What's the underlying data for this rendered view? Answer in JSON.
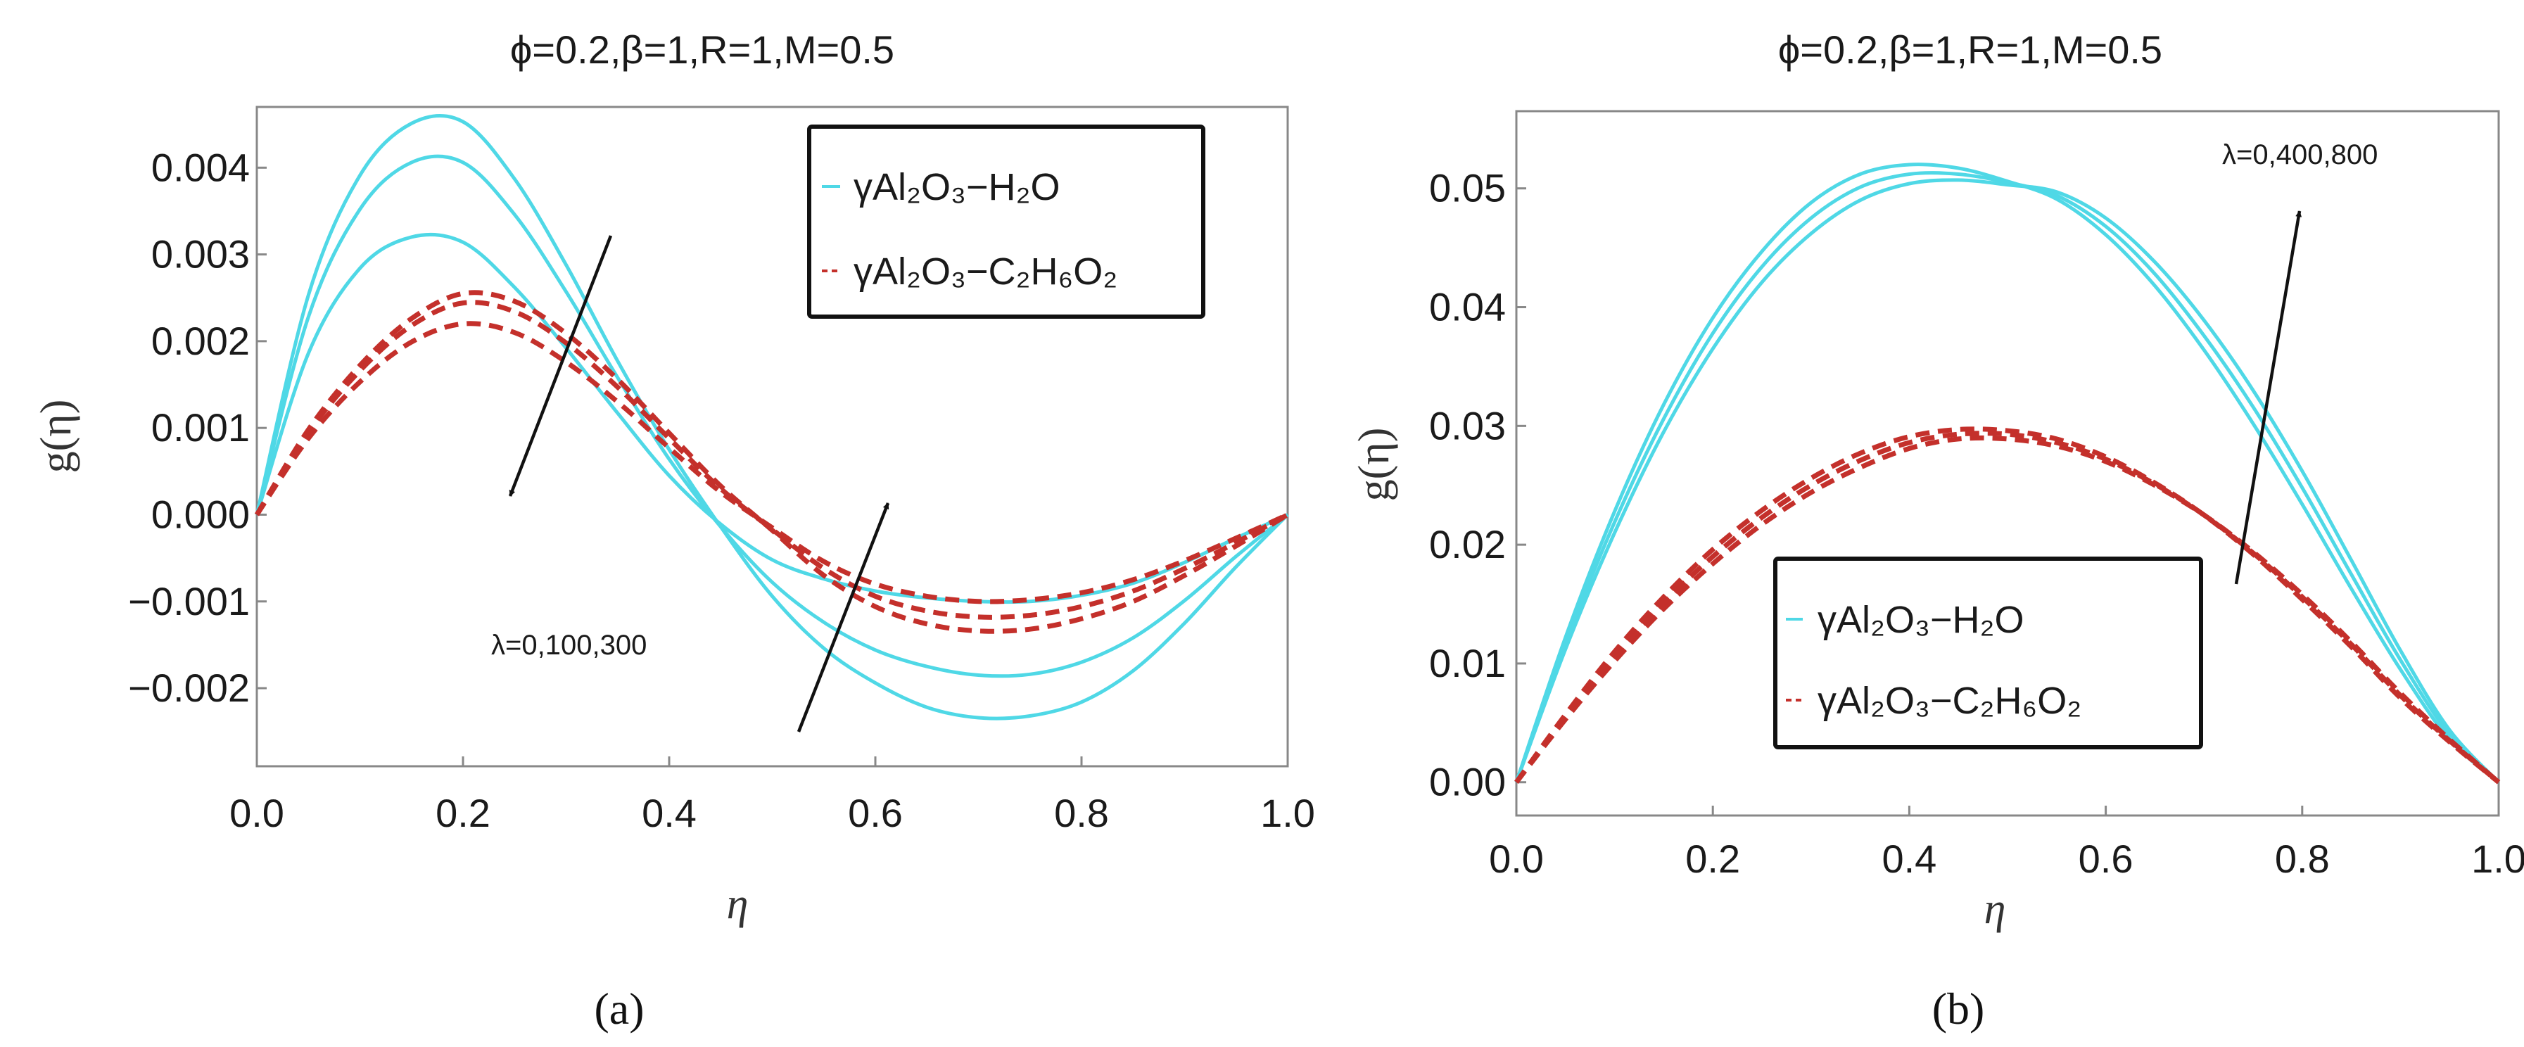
{
  "chart_data": [
    {
      "panel_label": "(a)",
      "type": "line",
      "title": "ϕ=0.2,β=1,R=1,M=0.5",
      "xlabel": "η",
      "ylabel": "g(η)",
      "xlim": [
        0,
        1
      ],
      "ylim": [
        -0.0029,
        0.0047
      ],
      "xticks": [
        0.0,
        0.2,
        0.4,
        0.6,
        0.8,
        1.0
      ],
      "xtick_labels": [
        "0.0",
        "0.2",
        "0.4",
        "0.6",
        "0.8",
        "1.0"
      ],
      "yticks": [
        -0.002,
        -0.001,
        0.0,
        0.001,
        0.002,
        0.003,
        0.004
      ],
      "ytick_labels": [
        "−0.002",
        "−0.001",
        "0.000",
        "0.001",
        "0.002",
        "0.003",
        "0.004"
      ],
      "annotation": "λ=0,100,300",
      "legend": {
        "position": "top-right",
        "entries": [
          {
            "label": "γAl₂O₃−H₂O",
            "style": "solid",
            "color": "#4fd8e6"
          },
          {
            "label": "γAl₂O₃−C₂H₆O₂",
            "style": "dashed",
            "color": "#c4302b"
          }
        ]
      },
      "x": [
        0,
        0.05,
        0.1,
        0.15,
        0.2,
        0.25,
        0.3,
        0.35,
        0.4,
        0.45,
        0.5,
        0.55,
        0.6,
        0.65,
        0.7,
        0.75,
        0.8,
        0.85,
        0.9,
        0.95,
        1
      ],
      "series": [
        {
          "name": "γAl₂O₃−H₂O λ=0",
          "style": "solid",
          "color": "#4fd8e6",
          "values": [
            0,
            0.00253,
            0.00391,
            0.00451,
            0.00453,
            0.00387,
            0.00288,
            0.00177,
            0.00075,
            -0.00014,
            -0.00094,
            -0.00154,
            -0.00194,
            -0.00222,
            -0.00234,
            -0.00232,
            -0.00216,
            -0.0018,
            -0.00125,
            -0.0006,
            0
          ]
        },
        {
          "name": "γAl₂O₃−H₂O λ=100",
          "style": "solid",
          "color": "#4fd8e6",
          "values": [
            0,
            0.00228,
            0.00352,
            0.00406,
            0.00406,
            0.00346,
            0.00257,
            0.00158,
            0.00064,
            -0.00014,
            -0.00078,
            -0.00124,
            -0.00156,
            -0.00175,
            -0.00185,
            -0.00184,
            -0.0017,
            -0.00142,
            -0.00099,
            -0.00048,
            0
          ]
        },
        {
          "name": "γAl₂O₃−H₂O λ=300",
          "style": "solid",
          "color": "#4fd8e6",
          "values": [
            0,
            0.00186,
            0.00284,
            0.0032,
            0.00314,
            0.00262,
            0.00192,
            0.00117,
            0.00045,
            -0.00011,
            -0.00052,
            -0.00074,
            -0.00088,
            -0.00096,
            -0.001,
            -0.001,
            -0.00093,
            -0.00079,
            -0.00055,
            -0.00027,
            0
          ]
        },
        {
          "name": "γAl₂O₃−C₂H₆O₂ λ=0",
          "style": "dashed",
          "color": "#c4302b",
          "values": [
            0,
            0.00098,
            0.00172,
            0.00226,
            0.00255,
            0.00246,
            0.00209,
            0.00156,
            0.00094,
            0.00033,
            -0.00018,
            -0.0007,
            -0.00106,
            -0.00126,
            -0.00134,
            -0.00132,
            -0.0012,
            -0.001,
            -0.0007,
            -0.00036,
            0
          ]
        },
        {
          "name": "γAl₂O₃−C₂H₆O₂ λ=100",
          "style": "dashed",
          "color": "#c4302b",
          "values": [
            0,
            0.00095,
            0.00166,
            0.00218,
            0.00244,
            0.00234,
            0.00198,
            0.00147,
            0.00088,
            0.0003,
            -0.00017,
            -0.00062,
            -0.00094,
            -0.00111,
            -0.00118,
            -0.00116,
            -0.00106,
            -0.00088,
            -0.00062,
            -0.00032,
            0
          ]
        },
        {
          "name": "γAl₂O₃−C₂H₆O₂ λ=300",
          "style": "dashed",
          "color": "#c4302b",
          "values": [
            0,
            0.00088,
            0.00153,
            0.00199,
            0.0022,
            0.0021,
            0.00176,
            0.0013,
            0.00077,
            0.00026,
            -0.00015,
            -0.00054,
            -0.0008,
            -0.00094,
            -0.001,
            -0.00098,
            -0.0009,
            -0.00075,
            -0.00053,
            -0.00027,
            0
          ]
        }
      ]
    },
    {
      "panel_label": "(b)",
      "type": "line",
      "title": "ϕ=0.2,β=1,R=1,M=0.5",
      "xlabel": "η",
      "ylabel": "g(η)",
      "xlim": [
        0,
        1
      ],
      "ylim": [
        -0.0028,
        0.0565
      ],
      "xticks": [
        0.0,
        0.2,
        0.4,
        0.6,
        0.8,
        1.0
      ],
      "xtick_labels": [
        "0.0",
        "0.2",
        "0.4",
        "0.6",
        "0.8",
        "1.0"
      ],
      "yticks": [
        0.0,
        0.01,
        0.02,
        0.03,
        0.04,
        0.05
      ],
      "ytick_labels": [
        "0.00",
        "0.01",
        "0.02",
        "0.03",
        "0.04",
        "0.05"
      ],
      "annotation": "λ=0,400,800",
      "legend": {
        "position": "bottom-center",
        "entries": [
          {
            "label": "γAl₂O₃−H₂O",
            "style": "solid",
            "color": "#4fd8e6"
          },
          {
            "label": "γAl₂O₃−C₂H₆O₂",
            "style": "dashed",
            "color": "#c4302b"
          }
        ]
      },
      "x": [
        0,
        0.05,
        0.1,
        0.15,
        0.2,
        0.25,
        0.3,
        0.35,
        0.4,
        0.45,
        0.5,
        0.55,
        0.6,
        0.65,
        0.7,
        0.75,
        0.8,
        0.85,
        0.9,
        0.95,
        1
      ],
      "series": [
        {
          "name": "γAl₂O₃−H₂O λ=0",
          "style": "solid",
          "color": "#4fd8e6",
          "values": [
            0,
            0.0112,
            0.021,
            0.0295,
            0.0365,
            0.0421,
            0.0462,
            0.049,
            0.0504,
            0.0507,
            0.0503,
            0.0497,
            0.0475,
            0.0438,
            0.0389,
            0.033,
            0.0262,
            0.0187,
            0.0111,
            0.0044,
            0
          ]
        },
        {
          "name": "γAl₂O₃−H₂O λ=400",
          "style": "solid",
          "color": "#4fd8e6",
          "values": [
            0,
            0.0117,
            0.0219,
            0.0306,
            0.0378,
            0.0434,
            0.0475,
            0.0501,
            0.0512,
            0.0512,
            0.0505,
            0.0494,
            0.0468,
            0.0428,
            0.0376,
            0.0316,
            0.0248,
            0.0175,
            0.0103,
            0.004,
            0
          ]
        },
        {
          "name": "γAl₂O₃−H₂O λ=800",
          "style": "solid",
          "color": "#4fd8e6",
          "values": [
            0,
            0.0122,
            0.0228,
            0.0318,
            0.0391,
            0.0447,
            0.0488,
            0.0512,
            0.052,
            0.0517,
            0.0506,
            0.0491,
            0.0461,
            0.0418,
            0.0364,
            0.0302,
            0.0234,
            0.0163,
            0.0095,
            0.0036,
            0
          ]
        },
        {
          "name": "γAl₂O₃−C₂H₆O₂ λ=0",
          "style": "dashed",
          "color": "#c4302b",
          "values": [
            0,
            0.0053,
            0.0102,
            0.0146,
            0.0184,
            0.0217,
            0.0244,
            0.0265,
            0.0281,
            0.0289,
            0.0289,
            0.0283,
            0.027,
            0.025,
            0.0225,
            0.0194,
            0.0158,
            0.0118,
            0.0075,
            0.0036,
            0
          ]
        },
        {
          "name": "γAl₂O₃−C₂H₆O₂ λ=400",
          "style": "dashed",
          "color": "#c4302b",
          "values": [
            0,
            0.0055,
            0.0106,
            0.0151,
            0.019,
            0.0223,
            0.025,
            0.0271,
            0.0286,
            0.0293,
            0.0293,
            0.0286,
            0.0272,
            0.0251,
            0.0225,
            0.0193,
            0.0156,
            0.0116,
            0.0073,
            0.0035,
            0
          ]
        },
        {
          "name": "γAl₂O₃−C₂H₆O₂ λ=800",
          "style": "dashed",
          "color": "#c4302b",
          "values": [
            0,
            0.0057,
            0.011,
            0.0156,
            0.0196,
            0.0229,
            0.0256,
            0.0277,
            0.0291,
            0.0297,
            0.0296,
            0.0289,
            0.0274,
            0.0252,
            0.0225,
            0.0192,
            0.0154,
            0.0114,
            0.0071,
            0.0034,
            0
          ]
        }
      ]
    }
  ]
}
